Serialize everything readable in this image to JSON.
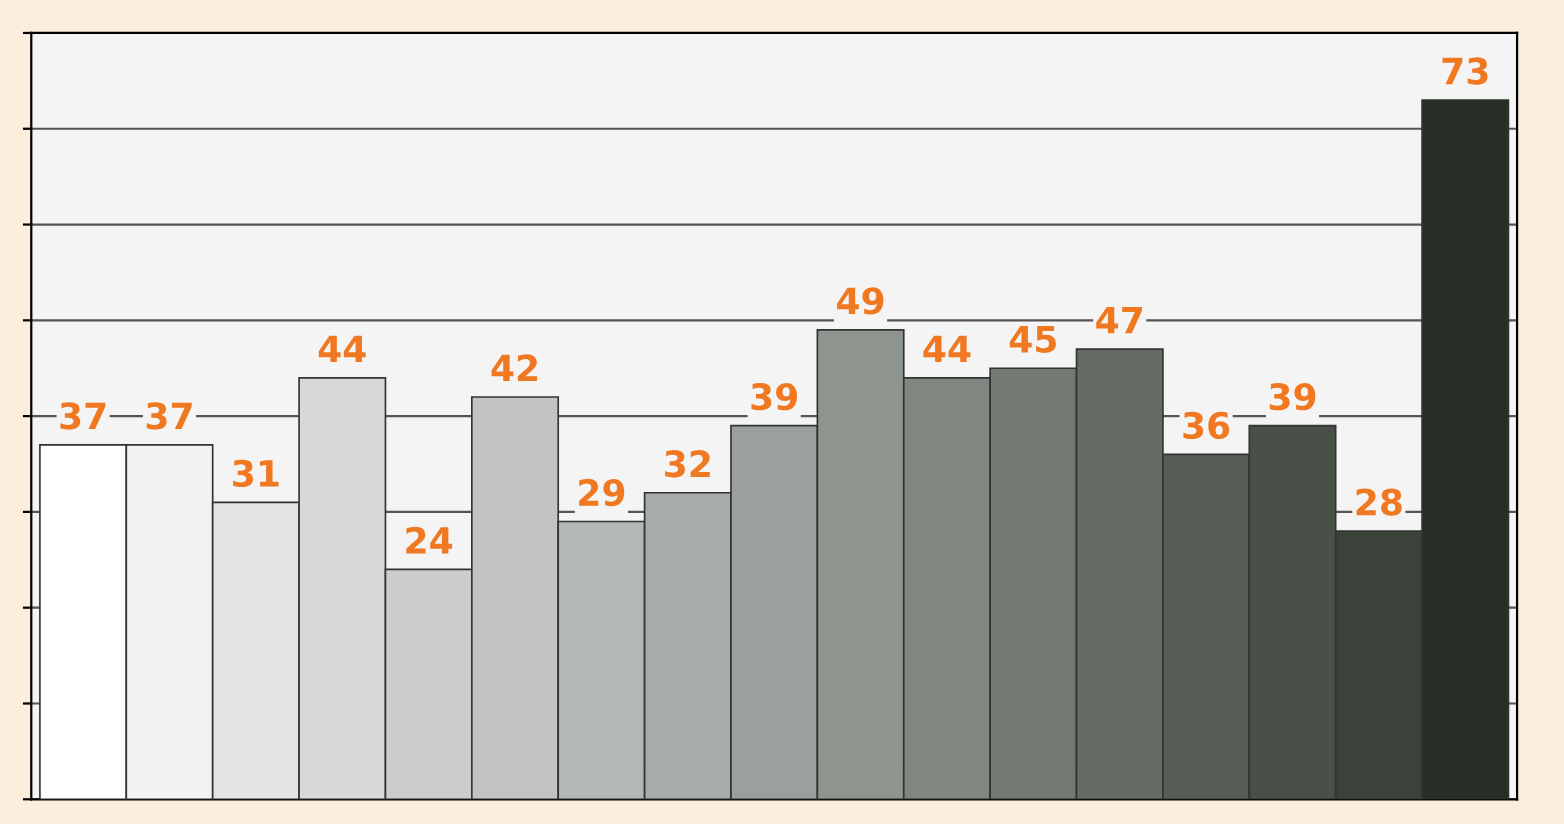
{
  "chart_data": {
    "type": "bar",
    "categories": [
      null,
      null,
      null,
      null,
      null,
      null,
      null,
      null,
      null,
      null,
      null,
      null,
      null,
      null,
      null,
      null,
      null
    ],
    "values": [
      37,
      37,
      31,
      44,
      24,
      42,
      29,
      32,
      39,
      49,
      44,
      45,
      47,
      36,
      39,
      28,
      73
    ],
    "colors": [
      "#ffffff",
      "#f2f2f2",
      "#e4e4e4",
      "#d8d8d8",
      "#cccccc",
      "#c2c4c2",
      "#b4b8b4",
      "#a8aca8",
      "#9ca09c",
      "#8e948e",
      "#808780",
      "#727a72",
      "#646c64",
      "#565e56",
      "#485048",
      "#3a423a",
      "#262e26"
    ],
    "data_labels": true,
    "ylim": [
      0,
      80
    ],
    "yticks": [
      {
        "value": 0,
        "label": null
      },
      {
        "value": 10,
        "label": null
      },
      {
        "value": 20,
        "label": null
      },
      {
        "value": 30,
        "label": null
      },
      {
        "value": 40,
        "label": null
      },
      {
        "value": 50,
        "label": null
      },
      {
        "value": 60,
        "label": null
      },
      {
        "value": 70,
        "label": null
      },
      {
        "value": 80,
        "label": null
      }
    ],
    "grid": "y"
  }
}
